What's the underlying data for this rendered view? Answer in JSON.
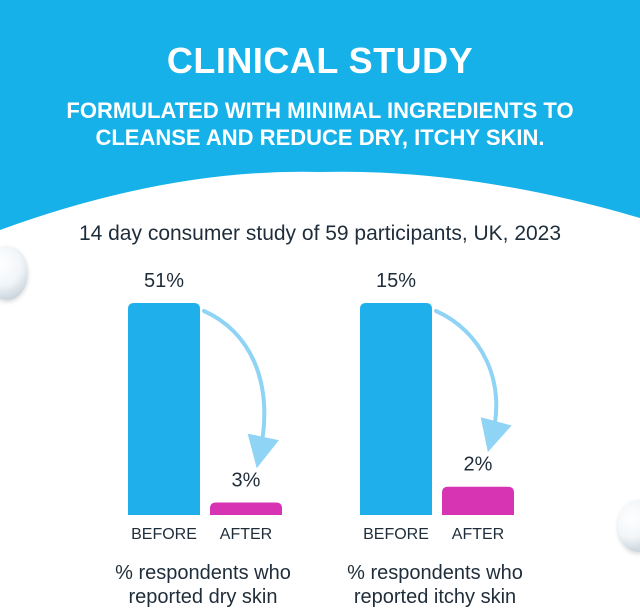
{
  "header": {
    "title": "CLINICAL STUDY",
    "subtitle": "FORMULATED WITH MINIMAL INGREDIENTS TO CLEANSE AND REDUCE DRY, ITCHY SKIN."
  },
  "study": {
    "description": "14 day consumer study of 59 participants, UK, 2023"
  },
  "colors": {
    "header_bg": "#16b1e8",
    "before_bar": "#1fb0ec",
    "after_bar": "#d634b3",
    "arrow": "#8fd3f5",
    "text": "#1f2d3a"
  },
  "chart_data": [
    {
      "type": "bar",
      "title": "% respondents who reported dry skin",
      "caption_lines": [
        "% respondents who",
        "reported dry skin"
      ],
      "categories": [
        "BEFORE",
        "AFTER"
      ],
      "values": [
        51,
        3
      ],
      "value_labels": [
        "51%",
        "3%"
      ],
      "unit": "%",
      "ylim": [
        0,
        51
      ]
    },
    {
      "type": "bar",
      "title": "% respondents who reported itchy skin",
      "caption_lines": [
        "% respondents who",
        "reported itchy skin"
      ],
      "categories": [
        "BEFORE",
        "AFTER"
      ],
      "values": [
        15,
        2
      ],
      "value_labels": [
        "15%",
        "2%"
      ],
      "unit": "%",
      "ylim": [
        0,
        15
      ]
    }
  ]
}
